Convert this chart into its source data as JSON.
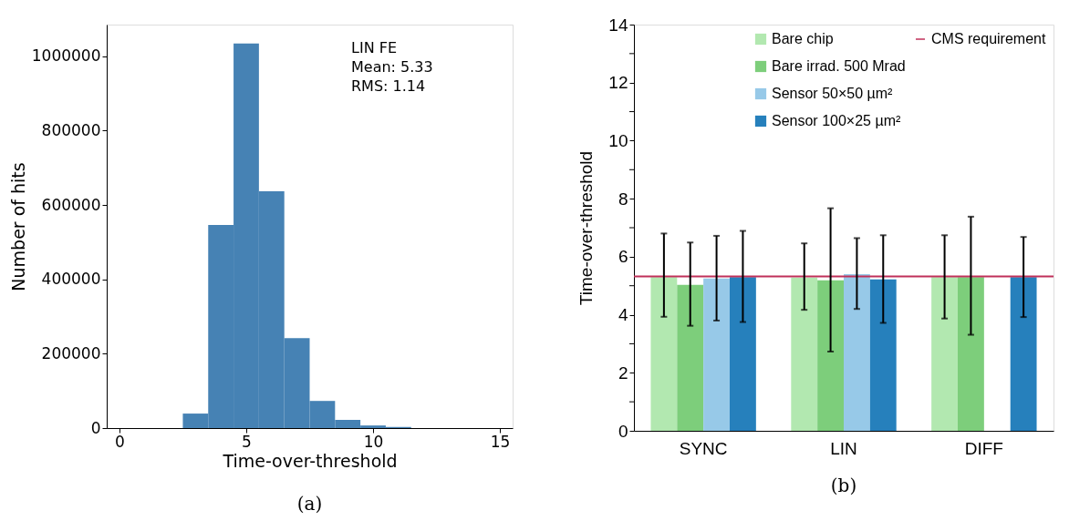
{
  "chart_data": [
    {
      "type": "histogram",
      "xlabel": "Time-over-threshold",
      "ylabel": "Number of hits",
      "bins": [
        -0.5,
        0.5,
        1.5,
        2.5,
        3.5,
        4.5,
        5.5,
        6.5,
        7.5,
        8.5,
        9.5,
        10.5,
        11.5,
        12.5,
        13.5,
        14.5,
        15.5
      ],
      "values": [
        0,
        0,
        0,
        39000,
        546000,
        1034000,
        637000,
        242000,
        73000,
        22000,
        7000,
        3000,
        0,
        0,
        0,
        0
      ],
      "color": "#4682b4",
      "xlim": [
        -0.5,
        15.5
      ],
      "xticks": [
        0,
        5,
        10,
        15
      ],
      "ylim": [
        0,
        1085000
      ],
      "yticks": [
        0,
        200000,
        400000,
        600000,
        800000,
        1000000
      ],
      "annotations": [
        "LIN FE",
        "Mean:   5.33",
        "RMS:    1.14",
        "(a)"
      ]
    },
    {
      "type": "bar",
      "ylabel": "Time-over-threshold",
      "categories": [
        "SYNC",
        "LIN",
        "DIFF"
      ],
      "series": [
        {
          "name": "Bare chip",
          "color": "#b2e8b0",
          "values": [
            5.3,
            5.28,
            5.3
          ],
          "errors": [
            [
              3.93,
              6.8
            ],
            [
              4.17,
              6.46
            ],
            [
              3.87,
              6.74
            ]
          ]
        },
        {
          "name": "Bare irrad. 500 Mrad",
          "color": "#7dce7b",
          "values": [
            5.03,
            5.19,
            5.3
          ],
          "errors": [
            [
              3.62,
              6.49
            ],
            [
              2.73,
              7.67
            ],
            [
              3.31,
              7.38
            ]
          ]
        },
        {
          "name": "Sensor 50×50 µm²",
          "color": "#97c9e8",
          "values": [
            5.25,
            5.4,
            null
          ],
          "errors": [
            [
              3.8,
              6.72
            ],
            [
              4.2,
              6.64
            ],
            null
          ]
        },
        {
          "name": "Sensor 100×25 µm²",
          "color": "#2680bc",
          "values": [
            5.3,
            5.22,
            5.3
          ],
          "errors": [
            [
              3.75,
              6.89
            ],
            [
              3.72,
              6.74
            ],
            [
              3.92,
              6.68
            ]
          ]
        }
      ],
      "ylim": [
        0,
        14
      ],
      "yticks": [
        0,
        {
          "value": 1,
          "label": null
        },
        2,
        {
          "value": 3,
          "label": null
        },
        4,
        {
          "value": 5,
          "label": null
        },
        6,
        {
          "value": 7,
          "label": null
        },
        8,
        {
          "value": 9,
          "label": null
        },
        10,
        {
          "value": 11,
          "label": null
        },
        12,
        {
          "value": 13,
          "label": null
        },
        14
      ],
      "ref_lines": [
        {
          "axis": "y",
          "value": 5.32,
          "label": "CMS requirement",
          "color": "#c0305a"
        }
      ],
      "legend": "top right",
      "annotations": [
        "(b)"
      ]
    }
  ]
}
